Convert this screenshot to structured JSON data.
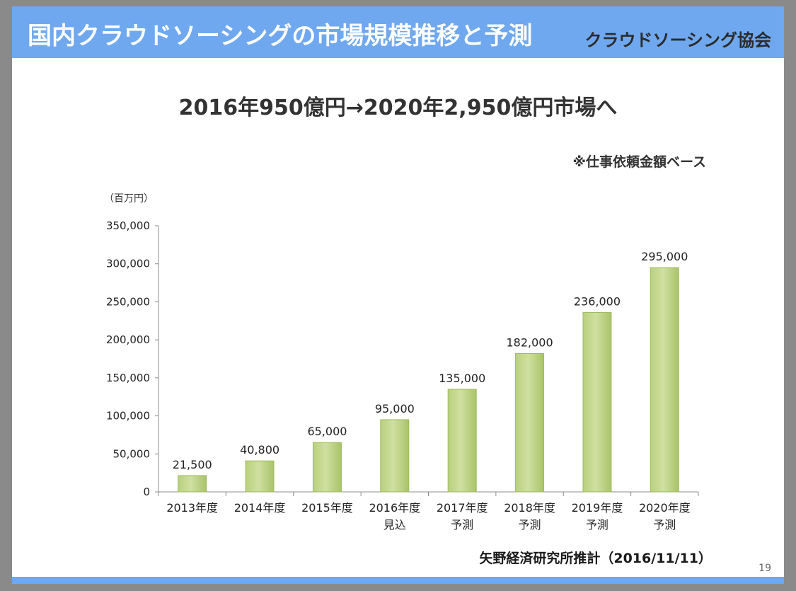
{
  "slide": {
    "title": "国内クラウドソーシングの市場規模推移と予測",
    "organization": "クラウドソーシング協会",
    "headline": "2016年950億円→2020年2,950億円市場へ",
    "note": "※仕事依頼金額ベース",
    "source": "矢野経済研究所推計（2016/11/11）",
    "page_number": "19"
  },
  "colors": {
    "banner": "#6fa8ef",
    "bar_fill": "#cfe0a0",
    "bar_edge": "#9fbb62"
  },
  "chart_data": {
    "type": "bar",
    "unit_label": "（百万円）",
    "categories": [
      [
        "2013年度"
      ],
      [
        "2014年度"
      ],
      [
        "2015年度"
      ],
      [
        "2016年度",
        "見込"
      ],
      [
        "2017年度",
        "予測"
      ],
      [
        "2018年度",
        "予測"
      ],
      [
        "2019年度",
        "予測"
      ],
      [
        "2020年度",
        "予測"
      ]
    ],
    "values": [
      21500,
      40800,
      65000,
      95000,
      135000,
      182000,
      236000,
      295000
    ],
    "value_labels": [
      "21,500",
      "40,800",
      "65,000",
      "95,000",
      "135,000",
      "182,000",
      "236,000",
      "295,000"
    ],
    "ylim": [
      0,
      350000
    ],
    "yticks": [
      0,
      50000,
      100000,
      150000,
      200000,
      250000,
      300000,
      350000
    ],
    "ytick_labels": [
      "0",
      "50,000",
      "100,000",
      "150,000",
      "200,000",
      "250,000",
      "300,000",
      "350,000"
    ],
    "grid": false
  }
}
